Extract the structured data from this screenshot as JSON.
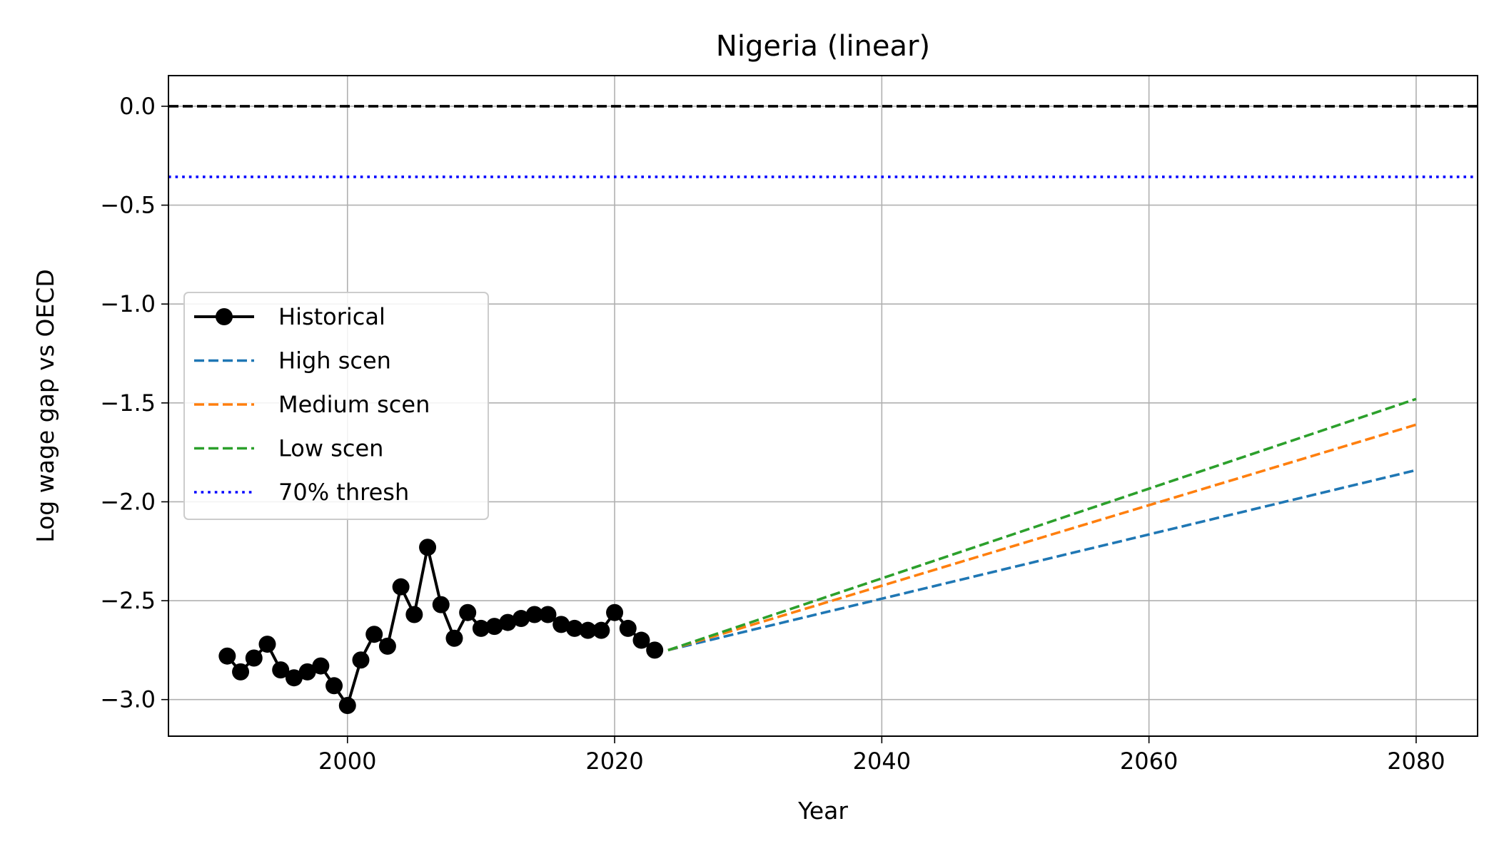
{
  "chart_data": {
    "type": "line",
    "title": "Nigeria (linear)",
    "xlabel": "Year",
    "ylabel": "Log wage gap vs OECD",
    "xlim": [
      1986.6,
      2084.6
    ],
    "ylim": [
      -3.185,
      0.155
    ],
    "xticks": [
      2000,
      2020,
      2040,
      2060,
      2080
    ],
    "yticks": [
      0.0,
      -0.5,
      -1.0,
      -1.5,
      -2.0,
      -2.5,
      -3.0
    ],
    "ytick_labels": [
      "0.0",
      "−0.5",
      "−1.0",
      "−1.5",
      "−2.0",
      "−2.5",
      "−3.0"
    ],
    "grid": true,
    "legend_position": "center-left",
    "series": [
      {
        "name": "Historical",
        "style": "solid-marker",
        "color": "#000000",
        "x": [
          1991,
          1992,
          1993,
          1994,
          1995,
          1996,
          1997,
          1998,
          1999,
          2000,
          2001,
          2002,
          2003,
          2004,
          2005,
          2006,
          2007,
          2008,
          2009,
          2010,
          2011,
          2012,
          2013,
          2014,
          2015,
          2016,
          2017,
          2018,
          2019,
          2020,
          2021,
          2022,
          2023
        ],
        "y": [
          -2.78,
          -2.86,
          -2.79,
          -2.72,
          -2.85,
          -2.89,
          -2.86,
          -2.83,
          -2.93,
          -3.03,
          -2.8,
          -2.67,
          -2.73,
          -2.43,
          -2.57,
          -2.23,
          -2.52,
          -2.69,
          -2.56,
          -2.64,
          -2.63,
          -2.61,
          -2.59,
          -2.57,
          -2.57,
          -2.62,
          -2.64,
          -2.65,
          -2.65,
          -2.56,
          -2.64,
          -2.7,
          -2.75
        ]
      },
      {
        "name": "High scen",
        "style": "dashed",
        "color": "#1f77b4",
        "x": [
          2024,
          2080
        ],
        "y": [
          -2.75,
          -1.84
        ]
      },
      {
        "name": "Medium scen",
        "style": "dashed",
        "color": "#ff7f0e",
        "x": [
          2024,
          2080
        ],
        "y": [
          -2.75,
          -1.61
        ]
      },
      {
        "name": "Low scen",
        "style": "dashed",
        "color": "#2ca02c",
        "x": [
          2024,
          2080
        ],
        "y": [
          -2.75,
          -1.48
        ]
      },
      {
        "name": "70% thresh",
        "style": "dotted-hline",
        "color": "#0000ff",
        "y": -0.357
      }
    ],
    "reference_line": {
      "y": 0.0,
      "style": "dashed",
      "color": "#000000"
    }
  }
}
